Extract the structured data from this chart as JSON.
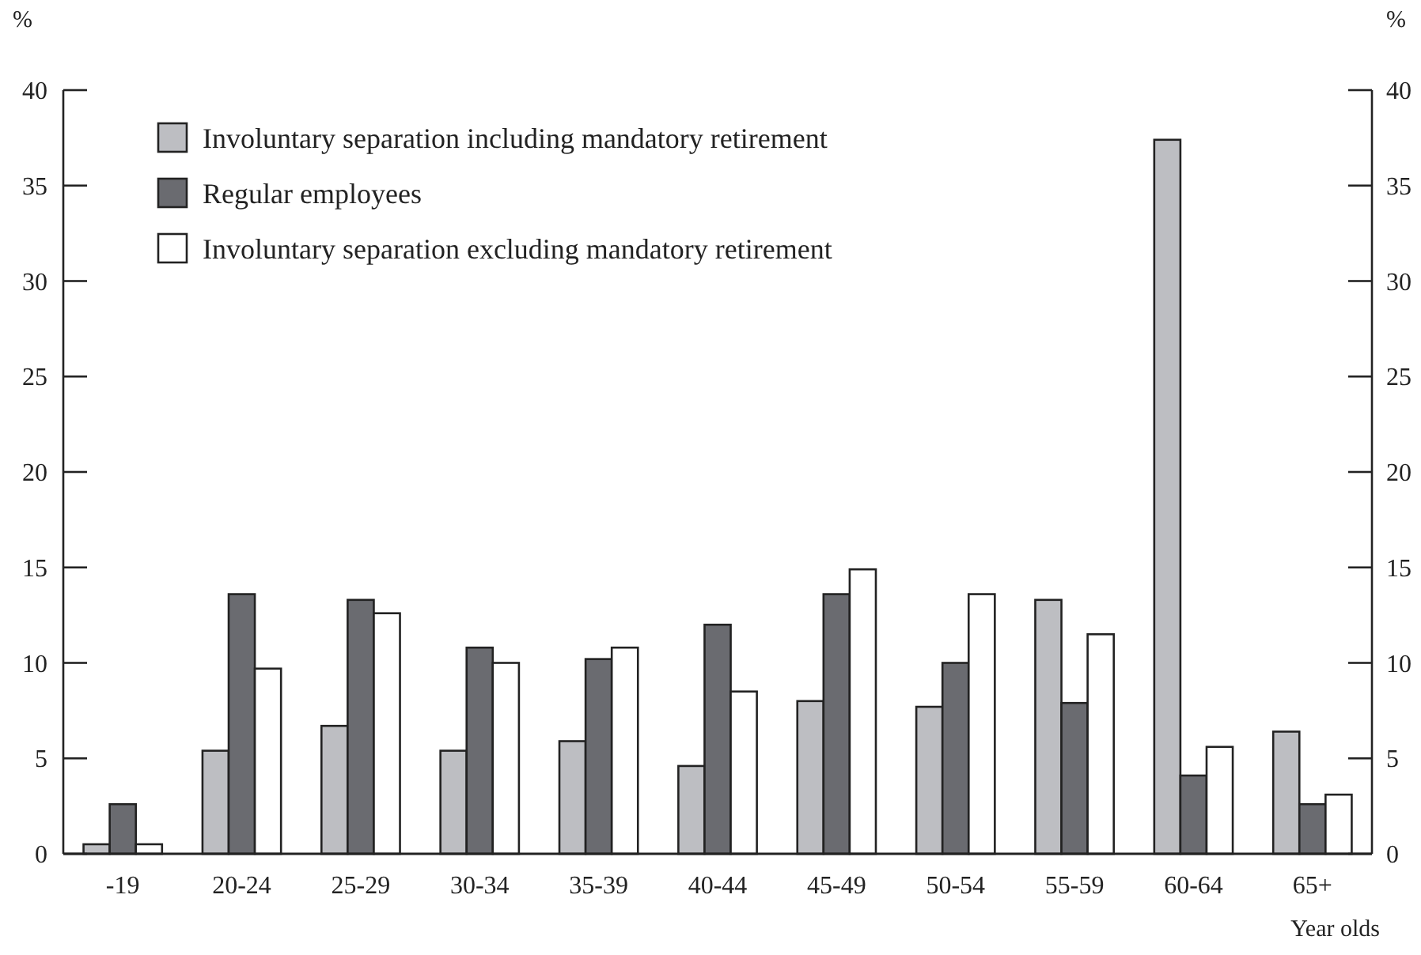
{
  "chart_data": {
    "type": "bar",
    "xlabel": "Year olds",
    "ylabel": "%",
    "y2label": "%",
    "categories": [
      "-19",
      "20-24",
      "25-29",
      "30-34",
      "35-39",
      "40-44",
      "45-49",
      "50-54",
      "55-59",
      "60-64",
      "65+"
    ],
    "series": [
      {
        "name": "Involuntary separation including mandatory retirement",
        "color": "#bdbec2",
        "values": [
          0.5,
          5.4,
          6.7,
          5.4,
          5.9,
          4.6,
          8.0,
          7.7,
          13.3,
          37.4,
          6.4
        ]
      },
      {
        "name": "Regular employees",
        "color": "#6a6b70",
        "values": [
          2.6,
          13.6,
          13.3,
          10.8,
          10.2,
          12.0,
          13.6,
          10.0,
          7.9,
          4.1,
          2.6
        ]
      },
      {
        "name": "Involuntary separation excluding mandatory retirement",
        "color": "#ffffff",
        "values": [
          0.5,
          9.7,
          12.6,
          10.0,
          10.8,
          8.5,
          14.9,
          13.6,
          11.5,
          5.6,
          3.1
        ]
      }
    ],
    "ylim": [
      0,
      40
    ],
    "yticks": [
      0,
      5,
      10,
      15,
      20,
      25,
      30,
      35,
      40
    ],
    "y2lim": [
      0,
      40
    ],
    "y2ticks": [
      0,
      5,
      10,
      15,
      20,
      25,
      30,
      35,
      40
    ],
    "legend": "top left",
    "grid": false
  }
}
